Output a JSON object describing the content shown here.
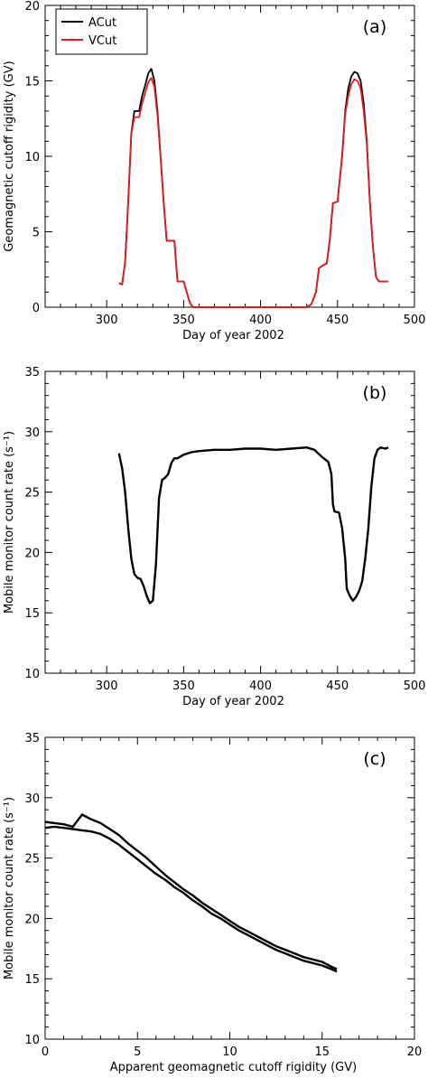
{
  "chart_data": [
    {
      "type": "line",
      "panel_label": "(a)",
      "xlabel": "Day of year 2002",
      "ylabel": "Geomagnetic cutoff rigidity (GV)",
      "xlim": [
        260,
        500
      ],
      "ylim": [
        0,
        20
      ],
      "xticks": [
        300,
        350,
        400,
        450,
        500
      ],
      "yticks": [
        0,
        5,
        10,
        15,
        20
      ],
      "legend": "top-left",
      "series": [
        {
          "name": "ACut",
          "color": "#000000",
          "points": [
            [
              308,
              1.6
            ],
            [
              310,
              1.5
            ],
            [
              312,
              3.0
            ],
            [
              314,
              7.0
            ],
            [
              316,
              11.5
            ],
            [
              318,
              13.0
            ],
            [
              321,
              13.0
            ],
            [
              323,
              14.0
            ],
            [
              325,
              14.7
            ],
            [
              327,
              15.5
            ],
            [
              329,
              15.8
            ],
            [
              331,
              15.0
            ],
            [
              333,
              13.0
            ],
            [
              335,
              10.0
            ],
            [
              337,
              7.0
            ],
            [
              339,
              4.4
            ],
            [
              342,
              4.4
            ],
            [
              344,
              4.4
            ],
            [
              346,
              1.7
            ],
            [
              350,
              1.7
            ],
            [
              352,
              1.0
            ],
            [
              354,
              0.3
            ],
            [
              356,
              0.0
            ],
            [
              400,
              0.0
            ],
            [
              430,
              0.0
            ],
            [
              433,
              0.2
            ],
            [
              436,
              1.0
            ],
            [
              438,
              2.6
            ],
            [
              441,
              2.8
            ],
            [
              443,
              2.9
            ],
            [
              445,
              4.5
            ],
            [
              447,
              6.9
            ],
            [
              450,
              7.0
            ],
            [
              453,
              10.0
            ],
            [
              455,
              13.0
            ],
            [
              457,
              14.5
            ],
            [
              459,
              15.3
            ],
            [
              461,
              15.6
            ],
            [
              463,
              15.5
            ],
            [
              465,
              15.0
            ],
            [
              467,
              13.5
            ],
            [
              469,
              11.0
            ],
            [
              471,
              7.0
            ],
            [
              473,
              4.0
            ],
            [
              475,
              2.0
            ],
            [
              477,
              1.7
            ],
            [
              480,
              1.7
            ],
            [
              483,
              1.7
            ]
          ]
        },
        {
          "name": "VCut",
          "color": "#e41a1c",
          "points": [
            [
              308,
              1.6
            ],
            [
              310,
              1.5
            ],
            [
              312,
              3.0
            ],
            [
              314,
              7.0
            ],
            [
              316,
              11.5
            ],
            [
              318,
              12.6
            ],
            [
              321,
              12.6
            ],
            [
              323,
              13.5
            ],
            [
              325,
              14.2
            ],
            [
              327,
              14.9
            ],
            [
              329,
              15.2
            ],
            [
              331,
              14.6
            ],
            [
              333,
              12.7
            ],
            [
              335,
              10.0
            ],
            [
              337,
              7.0
            ],
            [
              339,
              4.4
            ],
            [
              342,
              4.4
            ],
            [
              344,
              4.4
            ],
            [
              346,
              1.7
            ],
            [
              350,
              1.7
            ],
            [
              352,
              1.0
            ],
            [
              354,
              0.3
            ],
            [
              356,
              0.0
            ],
            [
              400,
              0.0
            ],
            [
              430,
              0.0
            ],
            [
              433,
              0.2
            ],
            [
              436,
              1.0
            ],
            [
              438,
              2.6
            ],
            [
              441,
              2.8
            ],
            [
              443,
              2.9
            ],
            [
              445,
              4.5
            ],
            [
              447,
              6.9
            ],
            [
              450,
              7.0
            ],
            [
              453,
              10.0
            ],
            [
              455,
              12.8
            ],
            [
              457,
              14.0
            ],
            [
              459,
              14.8
            ],
            [
              461,
              15.1
            ],
            [
              463,
              15.0
            ],
            [
              465,
              14.5
            ],
            [
              467,
              13.0
            ],
            [
              469,
              10.8
            ],
            [
              471,
              7.0
            ],
            [
              473,
              4.0
            ],
            [
              475,
              2.0
            ],
            [
              477,
              1.7
            ],
            [
              480,
              1.7
            ],
            [
              483,
              1.7
            ]
          ]
        }
      ]
    },
    {
      "type": "line",
      "panel_label": "(b)",
      "xlabel": "Day of year 2002",
      "ylabel": "Mobile monitor count rate (s⁻¹)",
      "xlim": [
        260,
        500
      ],
      "ylim": [
        10,
        35
      ],
      "xticks": [
        300,
        350,
        400,
        450,
        500
      ],
      "yticks": [
        10,
        15,
        20,
        25,
        30,
        35
      ],
      "series": [
        {
          "name": "",
          "color": "#000000",
          "points": [
            [
              308,
              28.2
            ],
            [
              310,
              27.0
            ],
            [
              312,
              25.0
            ],
            [
              314,
              22.0
            ],
            [
              316,
              19.5
            ],
            [
              318,
              18.2
            ],
            [
              320,
              17.9
            ],
            [
              322,
              17.8
            ],
            [
              324,
              17.2
            ],
            [
              326,
              16.4
            ],
            [
              328,
              15.8
            ],
            [
              330,
              16.0
            ],
            [
              332,
              19.0
            ],
            [
              334,
              24.5
            ],
            [
              336,
              26.0
            ],
            [
              338,
              26.2
            ],
            [
              340,
              26.5
            ],
            [
              342,
              27.4
            ],
            [
              344,
              27.8
            ],
            [
              346,
              27.8
            ],
            [
              350,
              28.1
            ],
            [
              355,
              28.3
            ],
            [
              360,
              28.4
            ],
            [
              370,
              28.5
            ],
            [
              380,
              28.5
            ],
            [
              390,
              28.6
            ],
            [
              400,
              28.6
            ],
            [
              410,
              28.5
            ],
            [
              420,
              28.6
            ],
            [
              430,
              28.7
            ],
            [
              435,
              28.5
            ],
            [
              440,
              27.9
            ],
            [
              444,
              27.5
            ],
            [
              446,
              26.5
            ],
            [
              447,
              24.0
            ],
            [
              448,
              23.4
            ],
            [
              451,
              23.3
            ],
            [
              453,
              22.0
            ],
            [
              455,
              19.5
            ],
            [
              456,
              17.0
            ],
            [
              458,
              16.4
            ],
            [
              460,
              16.0
            ],
            [
              462,
              16.3
            ],
            [
              464,
              16.8
            ],
            [
              466,
              17.6
            ],
            [
              468,
              19.5
            ],
            [
              470,
              22.0
            ],
            [
              472,
              25.5
            ],
            [
              474,
              27.8
            ],
            [
              476,
              28.5
            ],
            [
              478,
              28.7
            ],
            [
              481,
              28.6
            ],
            [
              483,
              28.7
            ]
          ]
        }
      ]
    },
    {
      "type": "scatter",
      "panel_label": "(c)",
      "xlabel": "Apparent geomagnetic cutoff rigidity (GV)",
      "ylabel": "Mobile monitor count rate (s⁻¹)",
      "xlim": [
        0,
        20
      ],
      "ylim": [
        10,
        35
      ],
      "xticks": [
        0,
        5,
        10,
        15,
        20
      ],
      "yticks": [
        10,
        15,
        20,
        25,
        30,
        35
      ],
      "series": [
        {
          "name": "",
          "color": "#000000",
          "points": [
            [
              0.0,
              28.0
            ],
            [
              0.5,
              27.9
            ],
            [
              1.0,
              27.8
            ],
            [
              1.5,
              27.6
            ],
            [
              2.0,
              28.6
            ],
            [
              2.5,
              28.2
            ],
            [
              3.0,
              27.9
            ],
            [
              3.5,
              27.4
            ],
            [
              4.0,
              26.9
            ],
            [
              4.5,
              26.2
            ],
            [
              5.0,
              25.6
            ],
            [
              5.5,
              25.0
            ],
            [
              6.0,
              24.3
            ],
            [
              6.5,
              23.6
            ],
            [
              7.0,
              23.0
            ],
            [
              7.5,
              22.4
            ],
            [
              8.0,
              21.9
            ],
            [
              8.5,
              21.3
            ],
            [
              9.0,
              20.8
            ],
            [
              9.5,
              20.3
            ],
            [
              10.0,
              19.8
            ],
            [
              10.5,
              19.3
            ],
            [
              11.0,
              18.9
            ],
            [
              11.5,
              18.5
            ],
            [
              12.0,
              18.1
            ],
            [
              12.5,
              17.7
            ],
            [
              13.0,
              17.4
            ],
            [
              13.5,
              17.1
            ],
            [
              14.0,
              16.8
            ],
            [
              14.5,
              16.6
            ],
            [
              15.0,
              16.4
            ],
            [
              15.5,
              16.0
            ],
            [
              15.8,
              15.8
            ]
          ]
        },
        {
          "name": "",
          "color": "#000000",
          "points": [
            [
              0.0,
              27.5
            ],
            [
              0.5,
              27.6
            ],
            [
              1.0,
              27.5
            ],
            [
              1.5,
              27.4
            ],
            [
              2.0,
              27.3
            ],
            [
              2.5,
              27.2
            ],
            [
              3.0,
              27.0
            ],
            [
              3.5,
              26.6
            ],
            [
              4.0,
              26.1
            ],
            [
              4.5,
              25.5
            ],
            [
              5.0,
              24.9
            ],
            [
              5.5,
              24.3
            ],
            [
              6.0,
              23.7
            ],
            [
              6.5,
              23.2
            ],
            [
              7.0,
              22.6
            ],
            [
              7.5,
              22.1
            ],
            [
              8.0,
              21.5
            ],
            [
              8.5,
              21.0
            ],
            [
              9.0,
              20.4
            ],
            [
              9.5,
              20.0
            ],
            [
              10.0,
              19.5
            ],
            [
              10.5,
              19.0
            ],
            [
              11.0,
              18.6
            ],
            [
              11.5,
              18.2
            ],
            [
              12.0,
              17.8
            ],
            [
              12.5,
              17.4
            ],
            [
              13.0,
              17.1
            ],
            [
              13.5,
              16.8
            ],
            [
              14.0,
              16.5
            ],
            [
              14.5,
              16.3
            ],
            [
              15.0,
              16.1
            ],
            [
              15.5,
              15.8
            ],
            [
              15.8,
              15.6
            ]
          ]
        }
      ]
    }
  ]
}
